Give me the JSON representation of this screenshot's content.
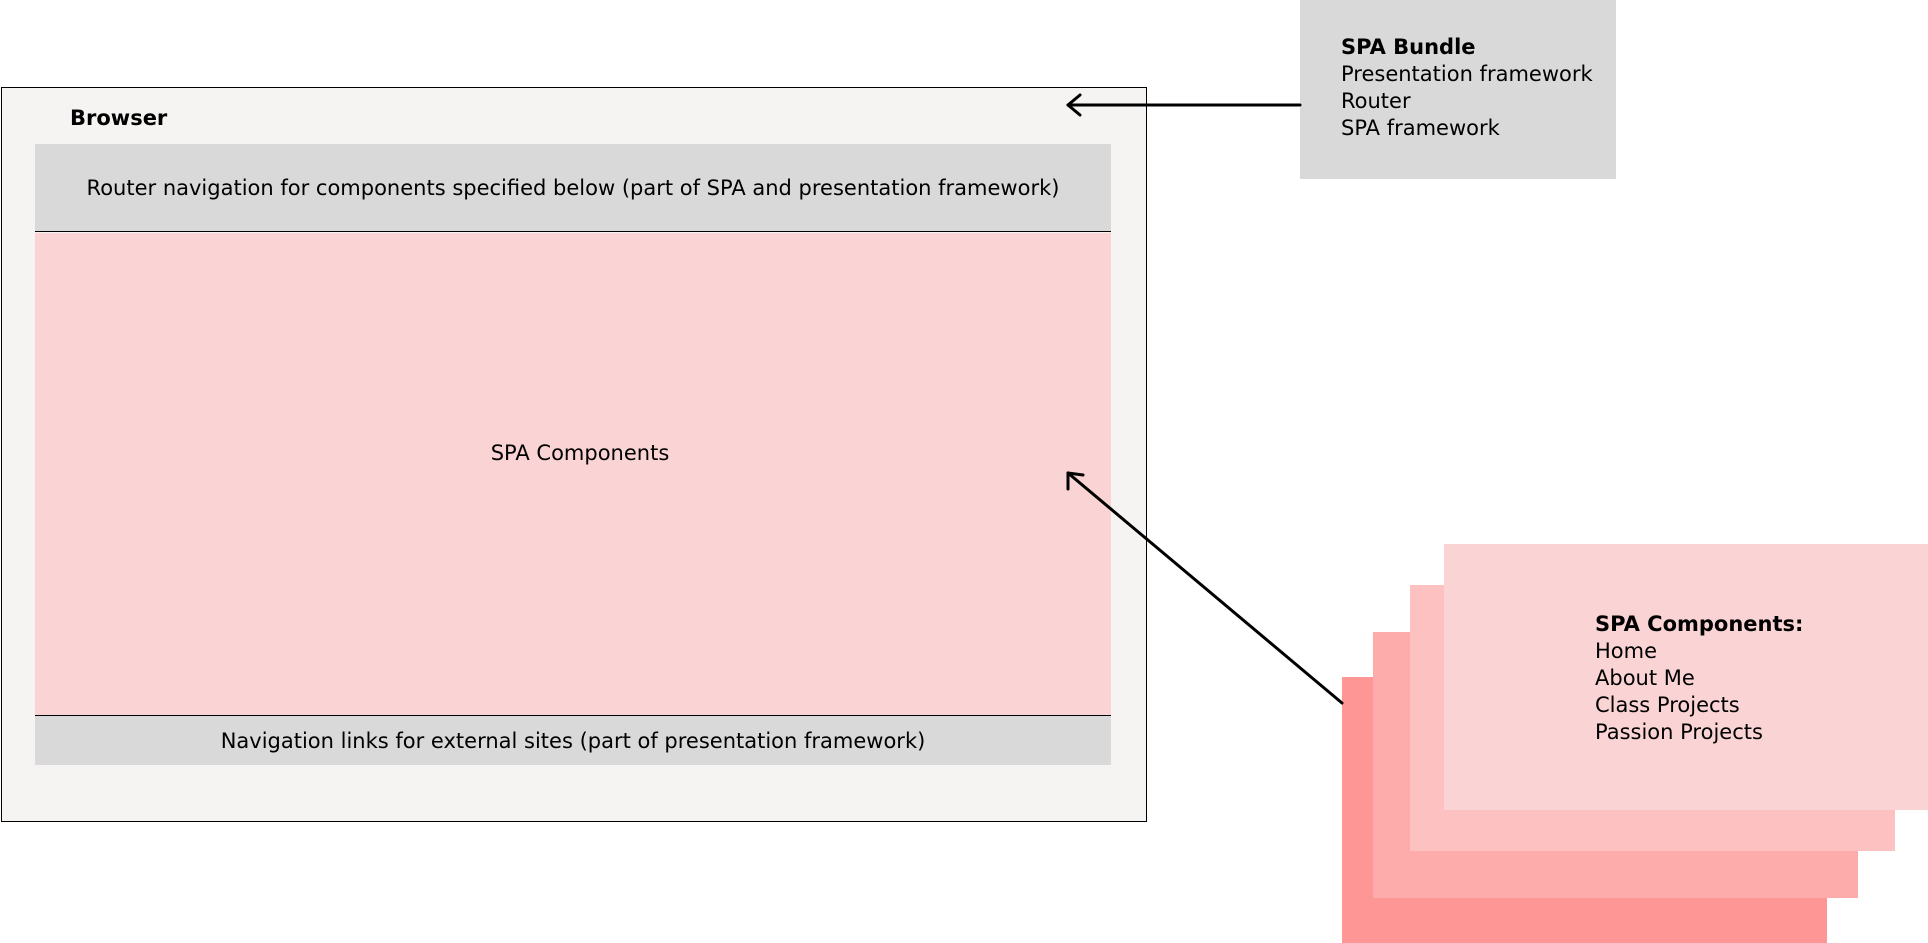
{
  "browser": {
    "label": "Browser",
    "router_nav": "Router navigation for components specified below (part of SPA and presentation framework)",
    "components_label": "SPA Components",
    "external_nav": "Navigation links for external sites (part of presentation framework)"
  },
  "bundle": {
    "title": "SPA Bundle",
    "items": [
      "Presentation framework",
      "Router",
      "SPA framework"
    ]
  },
  "components_stack": {
    "title": "SPA Components:",
    "items": [
      "Home",
      "About Me",
      "Class Projects",
      "Passion Projects"
    ]
  },
  "colors": {
    "browser_bg": "#f5f4f3",
    "bar_gray": "#d9d9d9",
    "pink_light": "#fad4d4",
    "pink_2": "#fec1c1",
    "pink_3": "#feabab",
    "pink_4": "#ff9696"
  }
}
